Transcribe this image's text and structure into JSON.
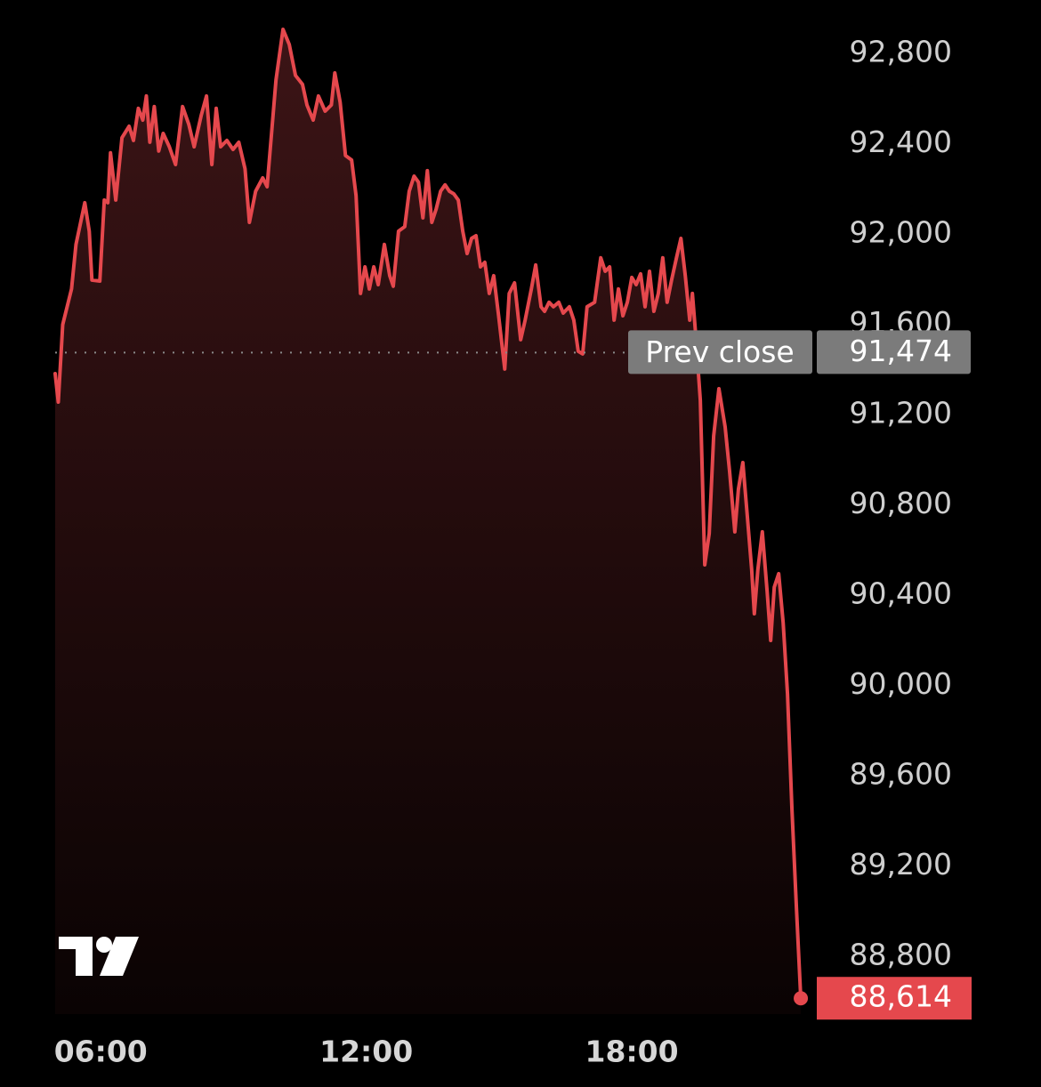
{
  "chart_data": {
    "type": "line",
    "series": [
      {
        "color": "#e5484d",
        "x": [
          4.97,
          5.04,
          5.14,
          5.34,
          5.44,
          5.64,
          5.74,
          5.8,
          5.98,
          6.08,
          6.16,
          6.22,
          6.34,
          6.48,
          6.64,
          6.74,
          6.85,
          6.95,
          7.03,
          7.11,
          7.21,
          7.31,
          7.41,
          7.55,
          7.69,
          7.85,
          7.99,
          8.11,
          8.27,
          8.39,
          8.51,
          8.61,
          8.71,
          8.85,
          8.99,
          9.12,
          9.26,
          9.36,
          9.5,
          9.66,
          9.76,
          9.86,
          9.96,
          10.12,
          10.26,
          10.4,
          10.56,
          10.66,
          10.8,
          10.92,
          11.07,
          11.21,
          11.29,
          11.41,
          11.53,
          11.67,
          11.77,
          11.87,
          11.97,
          12.07,
          12.17,
          12.27,
          12.41,
          12.53,
          12.61,
          12.73,
          12.87,
          12.97,
          13.08,
          13.18,
          13.28,
          13.38,
          13.48,
          13.58,
          13.68,
          13.78,
          13.88,
          13.98,
          14.08,
          14.18,
          14.28,
          14.38,
          14.48,
          14.58,
          14.68,
          14.78,
          14.88,
          14.99,
          15.13,
          15.23,
          15.35,
          15.49,
          15.59,
          15.73,
          15.83,
          15.95,
          16.03,
          16.13,
          16.23,
          16.35,
          16.45,
          16.59,
          16.69,
          16.79,
          16.89,
          16.99,
          17.16,
          17.3,
          17.4,
          17.5,
          17.6,
          17.7,
          17.8,
          17.9,
          18.0,
          18.1,
          18.2,
          18.3,
          18.4,
          18.5,
          18.6,
          18.7,
          18.8,
          18.9,
          19.01,
          19.11,
          19.21,
          19.31,
          19.37,
          19.45,
          19.55,
          19.65,
          19.75,
          19.85,
          19.97,
          20.11,
          20.21,
          20.33,
          20.41,
          20.51,
          20.61,
          20.71,
          20.77,
          20.85,
          20.95,
          21.06,
          21.14,
          21.22,
          21.32,
          21.42,
          21.52,
          21.62,
          21.72,
          21.82
        ],
        "values": [
          91381,
          91255,
          91598,
          91756,
          91953,
          92138,
          92012,
          91795,
          91791,
          92150,
          92138,
          92359,
          92150,
          92426,
          92477,
          92414,
          92556,
          92504,
          92611,
          92406,
          92564,
          92367,
          92445,
          92386,
          92307,
          92564,
          92485,
          92386,
          92524,
          92611,
          92307,
          92556,
          92386,
          92414,
          92374,
          92406,
          92288,
          92051,
          92189,
          92248,
          92209,
          92445,
          92682,
          92906,
          92839,
          92702,
          92662,
          92571,
          92504,
          92611,
          92544,
          92571,
          92713,
          92583,
          92347,
          92327,
          92169,
          91736,
          91854,
          91756,
          91854,
          91775,
          91953,
          91815,
          91768,
          92012,
          92032,
          92189,
          92256,
          92229,
          92071,
          92280,
          92051,
          92110,
          92189,
          92217,
          92189,
          92177,
          92150,
          92012,
          91913,
          91980,
          91992,
          91854,
          91874,
          91736,
          91815,
          91637,
          91401,
          91736,
          91783,
          91531,
          91618,
          91756,
          91862,
          91677,
          91657,
          91697,
          91677,
          91697,
          91649,
          91677,
          91618,
          91480,
          91468,
          91677,
          91697,
          91894,
          91834,
          91854,
          91618,
          91756,
          91637,
          91697,
          91807,
          91775,
          91823,
          91677,
          91834,
          91657,
          91736,
          91894,
          91697,
          91795,
          91894,
          91980,
          91815,
          91618,
          91736,
          91539,
          91263,
          90534,
          90672,
          91105,
          91314,
          91145,
          90948,
          90680,
          90869,
          90987,
          90751,
          90514,
          90317,
          90514,
          90680,
          90416,
          90199,
          90435,
          90495,
          90278,
          89962,
          89450,
          89017,
          88614
        ]
      }
    ],
    "xlim": [
      4.97,
      22
    ],
    "xticks": [
      {
        "value": 6,
        "label": "06:00"
      },
      {
        "value": 12,
        "label": "12:00"
      },
      {
        "value": 18,
        "label": "18:00"
      }
    ],
    "ylim": [
      88544,
      93036
    ],
    "yticks": [
      {
        "value": 88800,
        "label": "88,800"
      },
      {
        "value": 89200,
        "label": "89,200"
      },
      {
        "value": 89600,
        "label": "89,600"
      },
      {
        "value": 90000,
        "label": "90,000"
      },
      {
        "value": 90400,
        "label": "90,400"
      },
      {
        "value": 90800,
        "label": "90,800"
      },
      {
        "value": 91200,
        "label": "91,200"
      },
      {
        "value": 91600,
        "label": "91,600"
      },
      {
        "value": 92000,
        "label": "92,000"
      },
      {
        "value": 92400,
        "label": "92,400"
      },
      {
        "value": 92800,
        "label": "92,800"
      }
    ],
    "reference_line": {
      "label": "Prev close",
      "value": 91474,
      "value_label": "91,474"
    },
    "last_price": {
      "value": 88614,
      "label": "88,614"
    }
  }
}
